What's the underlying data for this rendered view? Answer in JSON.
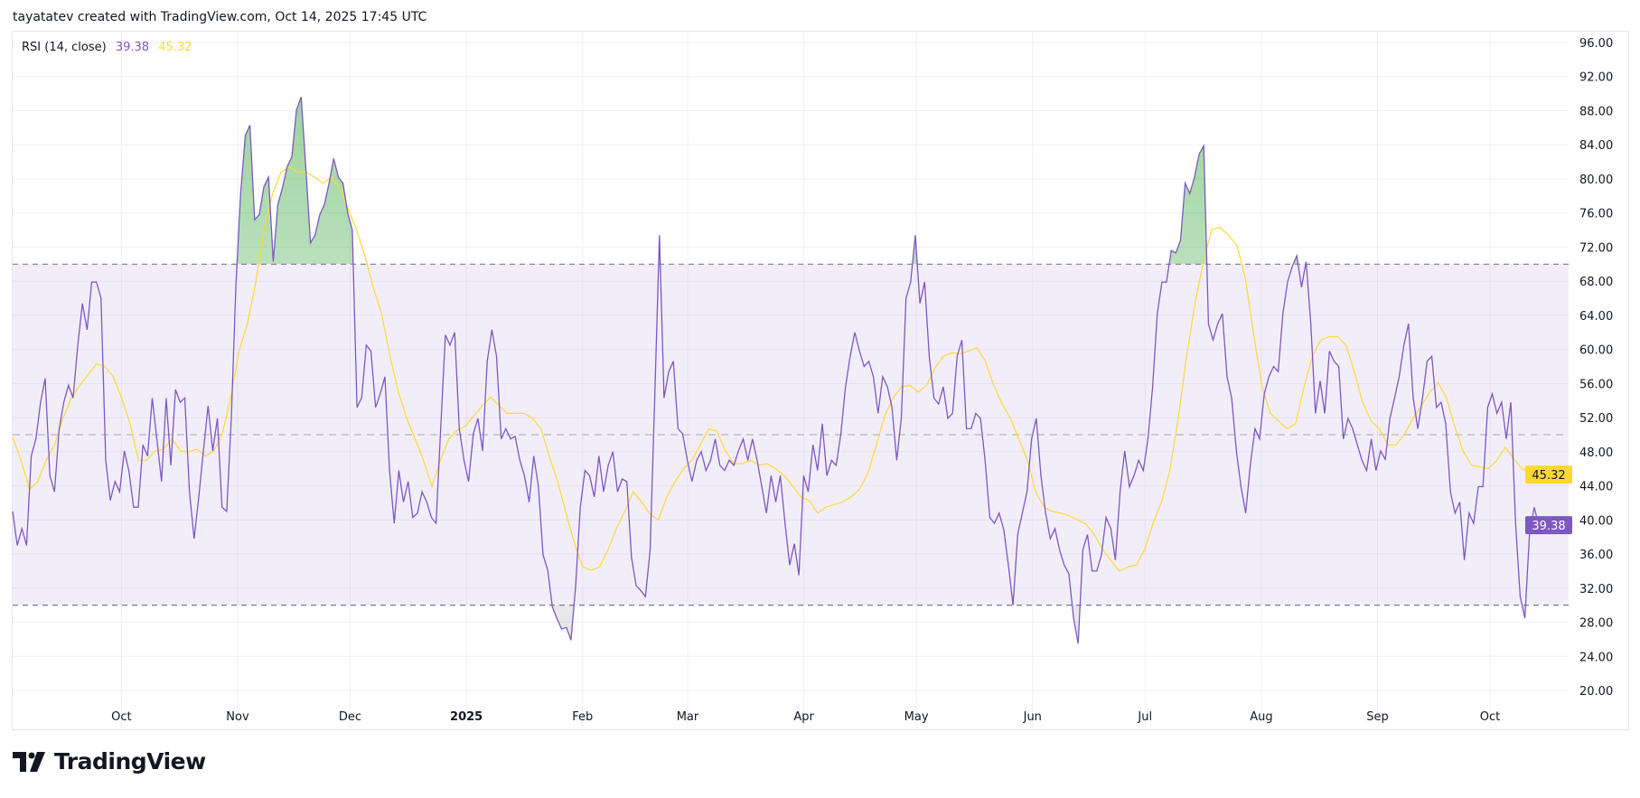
{
  "header": {
    "attribution": "tayatatev created with TradingView.com, Oct 14, 2025 17:45 UTC"
  },
  "legend": {
    "indicator": "RSI (14, close)",
    "rsi_value": "39.38",
    "ma_value": "45.32"
  },
  "footer": {
    "brand": "TradingView",
    "logo_icon": "tradingview-logo-icon"
  },
  "colors": {
    "rsi": "#7e57c2",
    "ma": "#fdd835",
    "band": "#7e57c2",
    "overbought_fill": "#4caf50",
    "grid": "#f0f0f3"
  },
  "chart_data": {
    "type": "line",
    "title": "",
    "x_range": [
      "2024-09-02",
      "2025-10-14"
    ],
    "ylim": [
      20,
      96
    ],
    "y_ticks": [
      "96.00",
      "92.00",
      "88.00",
      "84.00",
      "80.00",
      "76.00",
      "72.00",
      "68.00",
      "64.00",
      "60.00",
      "56.00",
      "52.00",
      "48.00",
      "44.00",
      "40.00",
      "36.00",
      "32.00",
      "28.00",
      "24.00",
      "20.00"
    ],
    "x_ticks": [
      {
        "date": "2024-10-01",
        "label": "Oct"
      },
      {
        "date": "2024-11-01",
        "label": "Nov"
      },
      {
        "date": "2024-12-01",
        "label": "Dec"
      },
      {
        "date": "2025-01-01",
        "label": "2025",
        "bold": true
      },
      {
        "date": "2025-02-01",
        "label": "Feb"
      },
      {
        "date": "2025-03-01",
        "label": "Mar"
      },
      {
        "date": "2025-04-01",
        "label": "Apr"
      },
      {
        "date": "2025-05-01",
        "label": "May"
      },
      {
        "date": "2025-06-01",
        "label": "Jun"
      },
      {
        "date": "2025-07-01",
        "label": "Jul"
      },
      {
        "date": "2025-08-01",
        "label": "Aug"
      },
      {
        "date": "2025-09-01",
        "label": "Sep"
      },
      {
        "date": "2025-10-01",
        "label": "Oct"
      }
    ],
    "bands": {
      "upper": 70,
      "middle": 50,
      "lower": 30
    },
    "grid": true,
    "last_value_badges": [
      {
        "series": "ma",
        "label": "45.32",
        "value": 45.32
      },
      {
        "series": "rsi",
        "label": "39.38",
        "value": 39.38
      }
    ],
    "series": [
      {
        "key": "rsi",
        "values": [
          41,
          37,
          39,
          37,
          47.5,
          49.5,
          53.8,
          56.6,
          45.2,
          43.3,
          50.7,
          53.8,
          55.8,
          54.3,
          60.5,
          65.4,
          62.3,
          67.9,
          67.9,
          66,
          47,
          42.3,
          44.5,
          43.3,
          48.1,
          45.7,
          41.5,
          41.5,
          48.8,
          47.5,
          54.3,
          49.5,
          44.5,
          54.3,
          46.4,
          55.3,
          53.8,
          54.3,
          43.3,
          37.8,
          42.7,
          48.1,
          53.4,
          48.1,
          51.9,
          41.5,
          41,
          51.9,
          67.9,
          78.3,
          85.1,
          86.3,
          75.2,
          75.8,
          79.1,
          80.2,
          70.3,
          77,
          79,
          81.4,
          82.6,
          88.1,
          89.6,
          81.4,
          72.5,
          73.4,
          75.8,
          77,
          79.5,
          82.4,
          80.2,
          79.5,
          76,
          74,
          53.2,
          54.3,
          60.5,
          59.8,
          53.2,
          54.8,
          56.8,
          45.8,
          39.6,
          45.8,
          42.1,
          44.5,
          40.3,
          40.8,
          43.3,
          42.1,
          40.3,
          39.6,
          50.7,
          61.7,
          60.5,
          62,
          50.7,
          47,
          44.5,
          50.1,
          51.9,
          48.1,
          58.6,
          62.3,
          59.2,
          49.5,
          50.7,
          49.5,
          49.8,
          47,
          45.2,
          42.1,
          47.5,
          43.9,
          35.9,
          34.1,
          29.8,
          28.4,
          27.2,
          27.4,
          25.9,
          32.3,
          41.5,
          45.8,
          45.2,
          42.7,
          47.5,
          43.3,
          46.4,
          48,
          43.3,
          44.8,
          44.5,
          35.6,
          32.3,
          31.7,
          31,
          36.5,
          54.3,
          73.4,
          54.3,
          57.4,
          58.6,
          50.7,
          50.1,
          47,
          44.5,
          47,
          48,
          45.8,
          47,
          49.5,
          46.4,
          45.8,
          47,
          46.4,
          48.1,
          49.5,
          47,
          49.5,
          47,
          43.9,
          40.8,
          45.2,
          42.1,
          45.2,
          39.6,
          34.7,
          37.2,
          33.5,
          45.2,
          43.3,
          48.8,
          45.8,
          51.3,
          45.2,
          47,
          46.4,
          50.1,
          55.6,
          59.2,
          62,
          59.8,
          58,
          58.6,
          56.8,
          52.5,
          56.8,
          55.6,
          53.2,
          47,
          51.9,
          66,
          67.9,
          73.4,
          65.4,
          67.9,
          59.2,
          54.3,
          53.6,
          55.6,
          51.9,
          52.5,
          59.2,
          61.1,
          50.7,
          50.7,
          52.5,
          51.9,
          47,
          40.3,
          39.6,
          40.8,
          38.9,
          34.7,
          30,
          38.3,
          40.8,
          43.3,
          49.5,
          51.9,
          45.2,
          40.8,
          37.8,
          39,
          36.5,
          34.7,
          33.7,
          28.5,
          25.5,
          36.5,
          38.3,
          34,
          34,
          35.9,
          40.3,
          39,
          35.3,
          43.3,
          48.1,
          43.9,
          45.2,
          47,
          45.8,
          49.5,
          55.6,
          64.2,
          67.9,
          67.9,
          71.6,
          71.3,
          72.8,
          79.5,
          78.3,
          80.2,
          82.9,
          83.9,
          63,
          61.1,
          63,
          64.2,
          56.8,
          54.3,
          48.1,
          43.9,
          40.8,
          46.4,
          50.7,
          49.5,
          54.8,
          56.8,
          58,
          57.4,
          64.2,
          67.9,
          69.7,
          71,
          67.3,
          70.3,
          63,
          52.5,
          56.3,
          52.5,
          59.8,
          58.6,
          58,
          49.5,
          51.9,
          50.7,
          48.8,
          47,
          45.8,
          49.5,
          45.8,
          48.1,
          47.1,
          51.9,
          54.3,
          56.8,
          60.5,
          63,
          54.3,
          50.7,
          54.3,
          58.6,
          59.2,
          53.2,
          53.8,
          51.3,
          43.3,
          40.8,
          42.1,
          35.3,
          40.8,
          39.6,
          43.9,
          43.9,
          53.2,
          54.8,
          52.5,
          53.8,
          49.5,
          53.8,
          39.6,
          31,
          28.5,
          38.3,
          41.5,
          39.38
        ]
      },
      {
        "key": "ma",
        "values": [
          49.7,
          47,
          43.6,
          44.5,
          47,
          48.8,
          51.9,
          54.3,
          55.8,
          57,
          58.3,
          58,
          56.8,
          54.3,
          51.3,
          47,
          47,
          48.1,
          48.3,
          49.5,
          48.1,
          48,
          48.3,
          47.5,
          48.1,
          50.1,
          54.3,
          59.8,
          63,
          67.9,
          74.1,
          78.3,
          80.8,
          81.4,
          80.8,
          80.8,
          80.2,
          79.5,
          80.2,
          79,
          76.5,
          74.1,
          71,
          67.3,
          64.2,
          59.2,
          55,
          51.9,
          49.5,
          47,
          43.9,
          47,
          49.5,
          50.5,
          51,
          52.2,
          53.4,
          54.4,
          53.4,
          52.5,
          52.5,
          52.5,
          51.9,
          50.7,
          47.5,
          44.5,
          40.8,
          37.2,
          34.5,
          34.1,
          34.5,
          36.5,
          39,
          41,
          43.3,
          42.1,
          40.7,
          40,
          42.7,
          44.5,
          46,
          47,
          48.8,
          50.7,
          50.4,
          48.1,
          46.6,
          46.6,
          47,
          46.4,
          46.6,
          46,
          45.2,
          44,
          42.7,
          42.3,
          40.8,
          41.5,
          41.8,
          42.1,
          42.7,
          43.6,
          45.5,
          48.8,
          52.2,
          54.3,
          55.6,
          55.8,
          55,
          55.8,
          57.8,
          59.2,
          59.6,
          59.5,
          59.8,
          60.2,
          58.6,
          55.8,
          53.6,
          51.9,
          49.5,
          47,
          43.3,
          41.5,
          41,
          40.8,
          40.5,
          40,
          39.5,
          38.3,
          36.5,
          35.2,
          34,
          34.5,
          34.7,
          36.5,
          39.6,
          42.1,
          45.8,
          51.9,
          59.2,
          65.4,
          70.3,
          74.1,
          74.3,
          73.4,
          72.2,
          68.4,
          61.7,
          55.6,
          52.5,
          51.6,
          50.7,
          51.3,
          55.6,
          59.2,
          61.1,
          61.5,
          61.5,
          60.5,
          57.4,
          53.8,
          51.6,
          50.7,
          48.8,
          48.8,
          50.1,
          51.9,
          53.4,
          55,
          56.1,
          54.3,
          50.9,
          48,
          46.4,
          46.2,
          46,
          47,
          48.5,
          47.2,
          46,
          45.6,
          45.32
        ]
      }
    ]
  }
}
